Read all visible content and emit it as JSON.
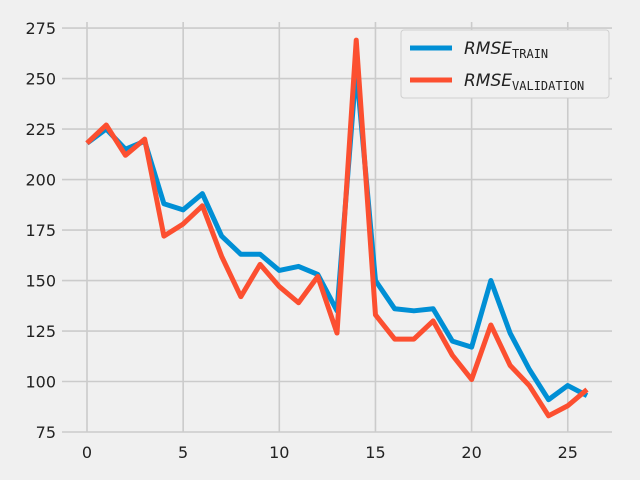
{
  "chart_data": {
    "type": "line",
    "title": "",
    "xlabel": "",
    "ylabel": "",
    "x": [
      0,
      1,
      2,
      3,
      4,
      5,
      6,
      7,
      8,
      9,
      10,
      11,
      12,
      13,
      14,
      15,
      16,
      17,
      18,
      19,
      20,
      21,
      22,
      23,
      24,
      25,
      26
    ],
    "xlim": [
      -1.3,
      27.3
    ],
    "ylim": [
      75,
      278
    ],
    "xticks": [
      0,
      5,
      10,
      15,
      20,
      25
    ],
    "yticks": [
      75,
      100,
      125,
      150,
      175,
      200,
      225,
      250,
      275
    ],
    "grid": true,
    "legend_position": "top-right",
    "series": [
      {
        "name": "RMSE",
        "subscript": "TRAIN",
        "color": "#008fd5",
        "values": [
          218,
          225,
          215,
          219,
          188,
          185,
          193,
          172,
          163,
          163,
          155,
          157,
          153,
          135,
          255,
          150,
          136,
          135,
          136,
          120,
          117,
          150,
          124,
          106,
          91,
          98,
          93
        ]
      },
      {
        "name": "RMSE",
        "subscript": "VALIDATION",
        "color": "#fc4f30",
        "values": [
          218,
          227,
          212,
          220,
          172,
          178,
          187,
          162,
          142,
          158,
          147,
          139,
          152,
          124,
          269,
          133,
          121,
          121,
          130,
          113,
          101,
          128,
          108,
          98,
          83,
          88,
          96
        ]
      }
    ]
  }
}
